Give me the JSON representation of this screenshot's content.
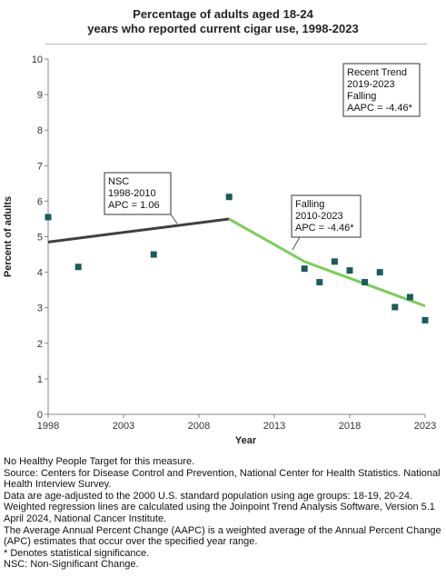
{
  "title_line1": "Percentage of adults aged 18-24",
  "title_line2": "years who reported current cigar use, 1998-2023",
  "chart_data": {
    "type": "scatter",
    "title": "Percentage of adults aged 18-24 years who reported current cigar use, 1998-2023",
    "xlabel": "Year",
    "ylabel": "Percent of adults",
    "xlim": [
      1998,
      2023
    ],
    "ylim": [
      0,
      10
    ],
    "x_ticks": [
      "1998",
      "2003",
      "2008",
      "2013",
      "2018",
      "2023"
    ],
    "y_ticks": [
      "0",
      "1",
      "2",
      "3",
      "4",
      "5",
      "6",
      "7",
      "8",
      "9",
      "10"
    ],
    "grid": false,
    "points": [
      {
        "x": 1998,
        "y": 5.55
      },
      {
        "x": 2000,
        "y": 4.15
      },
      {
        "x": 2005,
        "y": 4.5
      },
      {
        "x": 2010,
        "y": 6.12
      },
      {
        "x": 2015,
        "y": 4.1
      },
      {
        "x": 2016,
        "y": 3.72
      },
      {
        "x": 2017,
        "y": 4.3
      },
      {
        "x": 2018,
        "y": 4.05
      },
      {
        "x": 2019,
        "y": 3.72
      },
      {
        "x": 2020,
        "y": 4.0
      },
      {
        "x": 2021,
        "y": 3.02
      },
      {
        "x": 2022,
        "y": 3.3
      },
      {
        "x": 2023,
        "y": 2.65
      }
    ],
    "trend_segments": [
      {
        "x": [
          1998,
          2010
        ],
        "y": [
          4.85,
          5.5
        ],
        "color": "#404040"
      },
      {
        "x": [
          2010,
          2015,
          2023
        ],
        "y": [
          5.5,
          4.3,
          3.05
        ],
        "color": "#7ccc5c"
      }
    ],
    "annotations": [
      {
        "id": "nsc",
        "lines": [
          "NSC",
          "1998-2010",
          "APC =  1.06"
        ]
      },
      {
        "id": "falling",
        "lines": [
          "Falling",
          "2010-2023",
          "APC = -4.46*"
        ]
      },
      {
        "id": "recent",
        "lines": [
          "Recent Trend",
          "2019-2023",
          "Falling",
          "AAPC = -4.46*"
        ]
      }
    ],
    "colors": {
      "point": "#1d5b5b",
      "axis": "#888888"
    }
  },
  "notes": [
    "No Healthy People Target for this measure.",
    "Source: Centers for Disease Control and Prevention, National Center for Health Statistics. National Health Interview Survey.",
    "Data are age-adjusted to the 2000 U.S. standard population using age groups: 18-19, 20-24.",
    "Weighted regression lines are calculated using the Joinpoint Trend Analysis Software, Version 5.1 April 2024, National Cancer Institute.",
    "The Average Annual Percent Change (AAPC) is a weighted average of the Annual Percent Change (APC) estimates that occur over the specified year range.",
    "* Denotes statistical significance.",
    "NSC: Non-Significant Change."
  ]
}
